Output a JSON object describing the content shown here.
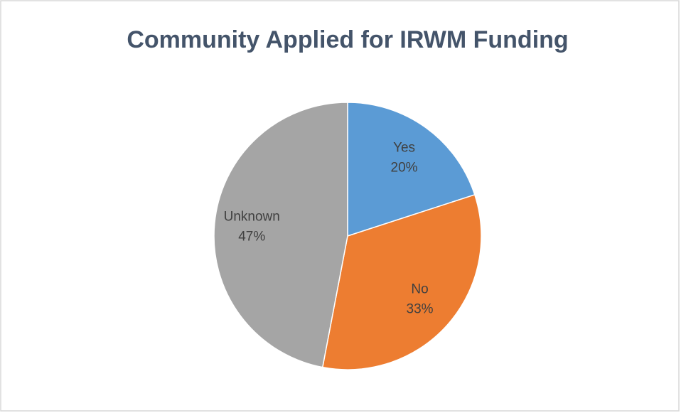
{
  "chart_data": {
    "type": "pie",
    "title": "Community Applied for IRWM Funding",
    "categories": [
      "Yes",
      "No",
      "Unknown"
    ],
    "values": [
      20,
      33,
      47
    ],
    "value_labels": [
      "20%",
      "33%",
      "47%"
    ],
    "colors": [
      "#5b9bd5",
      "#ed7d31",
      "#a5a5a5"
    ]
  }
}
